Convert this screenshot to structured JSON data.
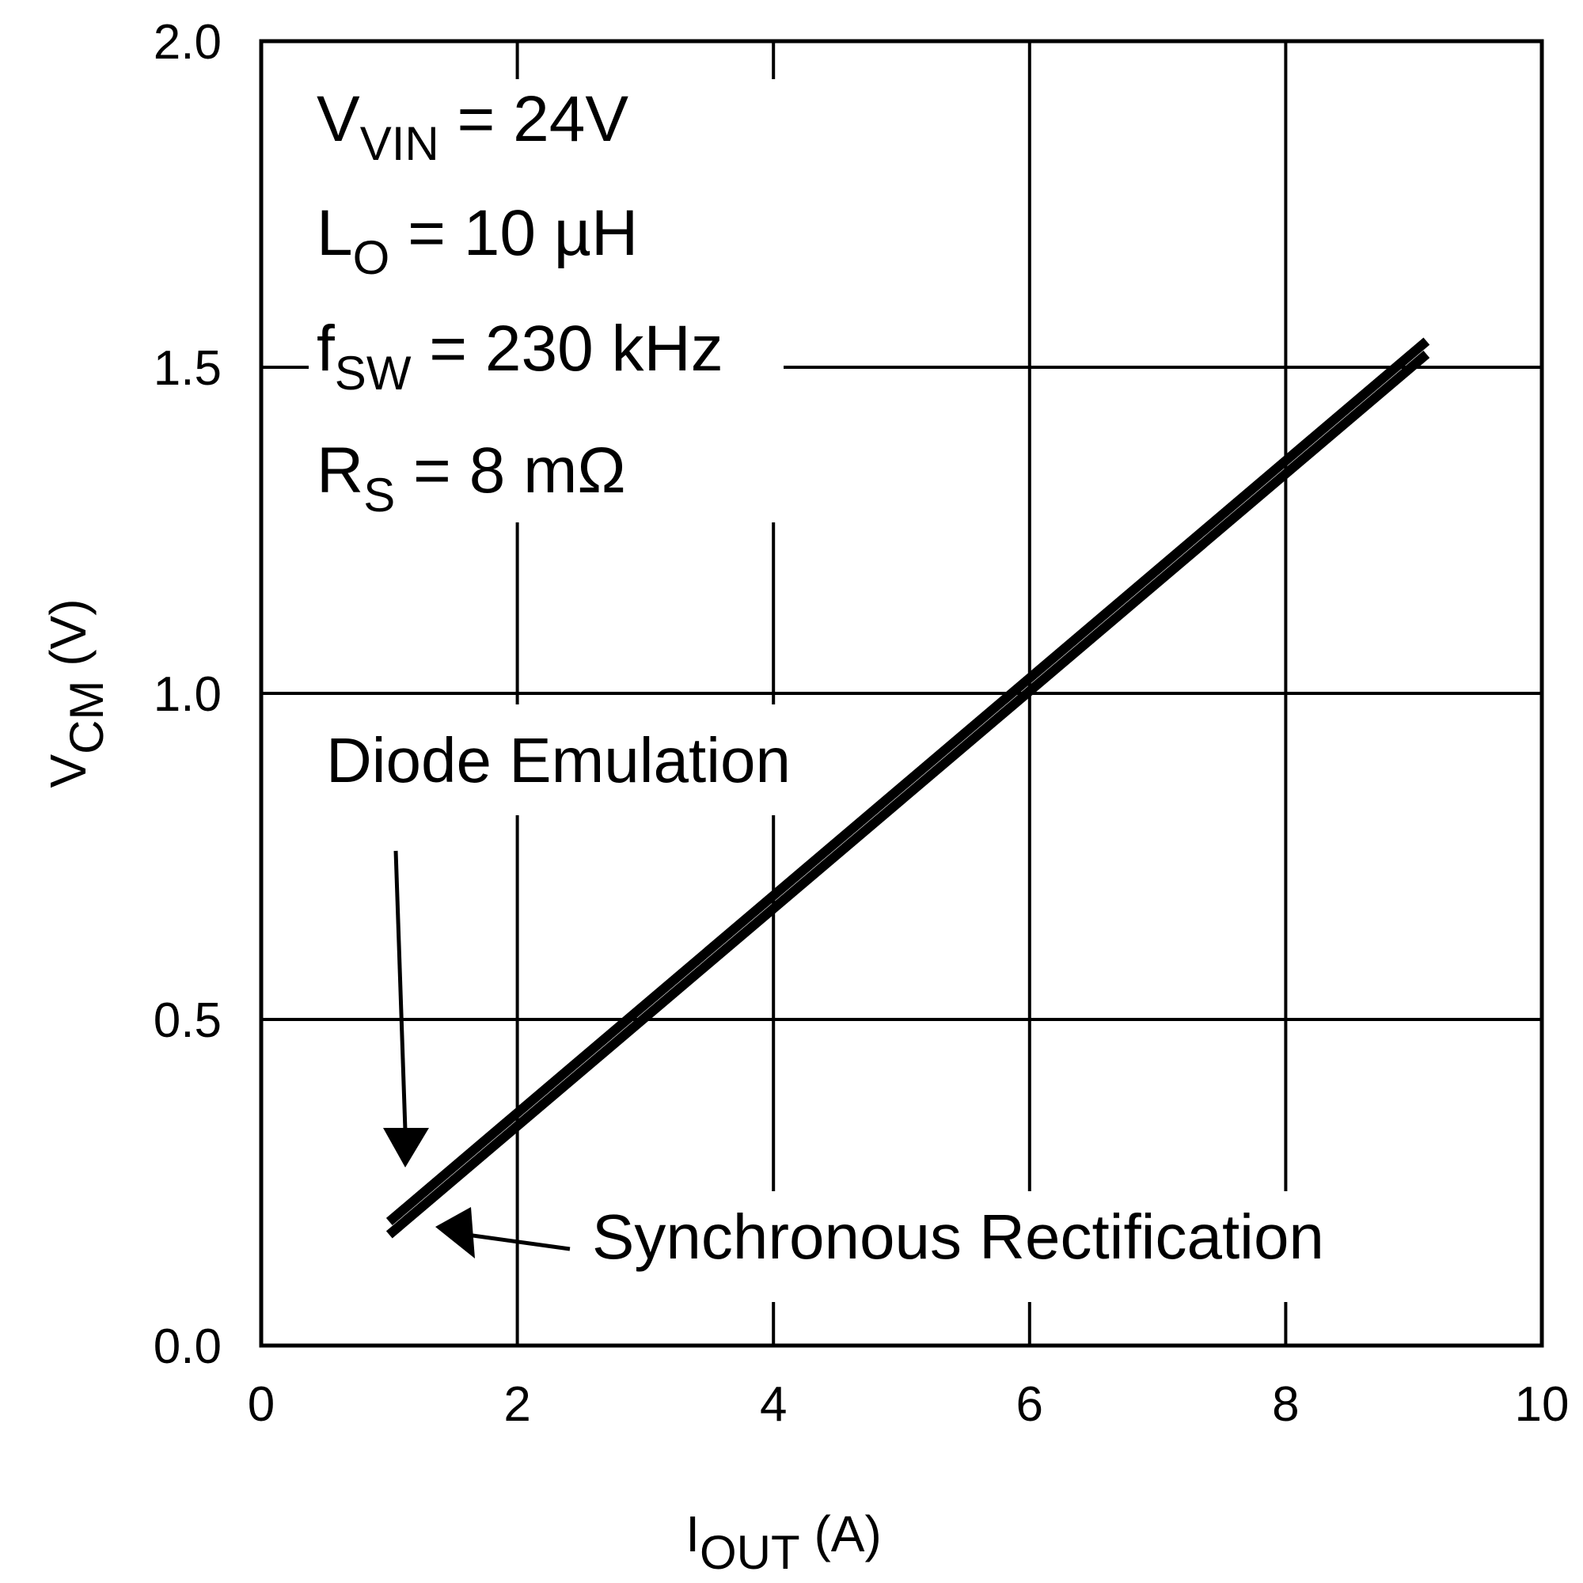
{
  "chart_data": {
    "type": "line",
    "title": "",
    "xlabel": {
      "main": "I",
      "sub": "OUT",
      "unit": " (A)"
    },
    "ylabel": {
      "main": "V",
      "sub": "CM",
      "unit": " (V)"
    },
    "xlim": [
      0,
      10
    ],
    "ylim": [
      0,
      2
    ],
    "x_ticks": [
      "0",
      "2",
      "4",
      "6",
      "8",
      "10"
    ],
    "y_ticks": [
      "0.0",
      "0.5",
      "1.0",
      "1.5",
      "2.0"
    ],
    "x_tick_values": [
      0,
      2,
      4,
      6,
      8,
      10
    ],
    "y_tick_values": [
      0,
      0.5,
      1.0,
      1.5,
      2.0
    ],
    "grid": true,
    "series": [
      {
        "values": [
          [
            1.0,
            0.19
          ],
          [
            9.1,
            1.54
          ]
        ]
      },
      {
        "values": [
          [
            1.0,
            0.17
          ],
          [
            9.1,
            1.52
          ]
        ]
      }
    ],
    "conditions": [
      {
        "main": "V",
        "sub": "VIN",
        "rest": " = 24V"
      },
      {
        "main": "L",
        "sub": "O",
        "rest": " = 10 µH"
      },
      {
        "main": "f",
        "sub": "SW",
        "rest": " = 230 kHz"
      },
      {
        "main": "R",
        "sub": "S",
        "rest": " = 8 mΩ"
      }
    ],
    "annotations": {
      "diode_emulation": "Diode Emulation",
      "synchronous_rectification": "Synchronous Rectification"
    },
    "colors": {
      "line": "#000000",
      "grid": "#000000",
      "background": "#ffffff"
    }
  }
}
